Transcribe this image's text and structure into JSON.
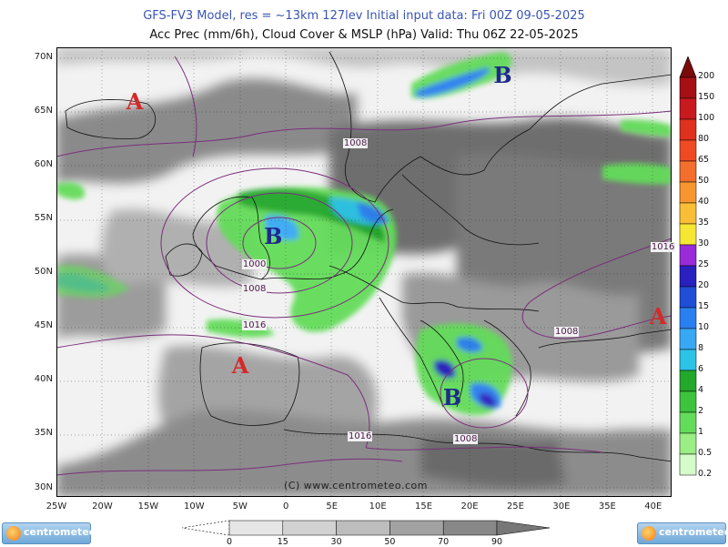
{
  "header": {
    "line1": "GFS-FV3 Model, res = ~13km 127lev    Initial input data: Fri 00Z 09-05-2025",
    "line2": "Acc Prec (mm/6h), Cloud Cover & MSLP (hPa)  Valid: Thu 06Z 22-05-2025"
  },
  "map": {
    "lat_labels": [
      "70N",
      "65N",
      "60N",
      "55N",
      "50N",
      "45N",
      "40N",
      "35N",
      "30N"
    ],
    "lon_labels": [
      "25W",
      "20W",
      "15W",
      "10W",
      "5W",
      "0",
      "5E",
      "10E",
      "15E",
      "20E",
      "25E",
      "30E",
      "35E",
      "40E"
    ],
    "pressure_centers": [
      {
        "letter": "A",
        "type": "high",
        "lon": -16.5,
        "lat": 66.0
      },
      {
        "letter": "B",
        "type": "low",
        "lon": 23.5,
        "lat": 68.5
      },
      {
        "letter": "B",
        "type": "low",
        "lon": -1.5,
        "lat": 53.5
      },
      {
        "letter": "A",
        "type": "high",
        "lon": -5.0,
        "lat": 41.5
      },
      {
        "letter": "B",
        "type": "low",
        "lon": 18.0,
        "lat": 38.5
      },
      {
        "letter": "A",
        "type": "high",
        "lon": 40.5,
        "lat": 46.0
      }
    ],
    "isobar_labels": [
      {
        "text": "1008",
        "lon": 7.5,
        "lat": 62.0
      },
      {
        "text": "1000",
        "lon": -3.5,
        "lat": 50.8
      },
      {
        "text": "1008",
        "lon": -3.5,
        "lat": 48.5
      },
      {
        "text": "1016",
        "lon": -3.5,
        "lat": 45.1
      },
      {
        "text": "1016",
        "lon": 41.0,
        "lat": 52.4
      },
      {
        "text": "1008",
        "lon": 30.5,
        "lat": 44.5
      },
      {
        "text": "1016",
        "lon": 8.0,
        "lat": 34.8
      },
      {
        "text": "1008",
        "lon": 19.5,
        "lat": 34.5
      }
    ],
    "credit": "(C) www.centrometeo.com"
  },
  "precip_scale": {
    "labels": [
      "200",
      "150",
      "100",
      "80",
      "65",
      "50",
      "40",
      "35",
      "30",
      "25",
      "20",
      "15",
      "10",
      "8",
      "6",
      "4",
      "2",
      "1",
      "0.5",
      "0.2"
    ],
    "colors": [
      "#7a0a0a",
      "#a50f15",
      "#c8191e",
      "#e0301e",
      "#f04a23",
      "#f46f2b",
      "#f7962f",
      "#f9be35",
      "#f7e735",
      "#9a2bd8",
      "#2a1fbf",
      "#1f4fd6",
      "#2a7ff0",
      "#38a8f5",
      "#2bc4e6",
      "#22a82a",
      "#3cc43c",
      "#63dc5a",
      "#9aee84",
      "#d4fbc9"
    ]
  },
  "cloud_scale": {
    "labels": [
      "0",
      "15",
      "30",
      "50",
      "70",
      "90"
    ],
    "colors": [
      "#e6e6e6",
      "#d2d2d2",
      "#bdbdbd",
      "#a2a2a2",
      "#888888"
    ]
  },
  "logos": {
    "text": "centrometeo"
  }
}
